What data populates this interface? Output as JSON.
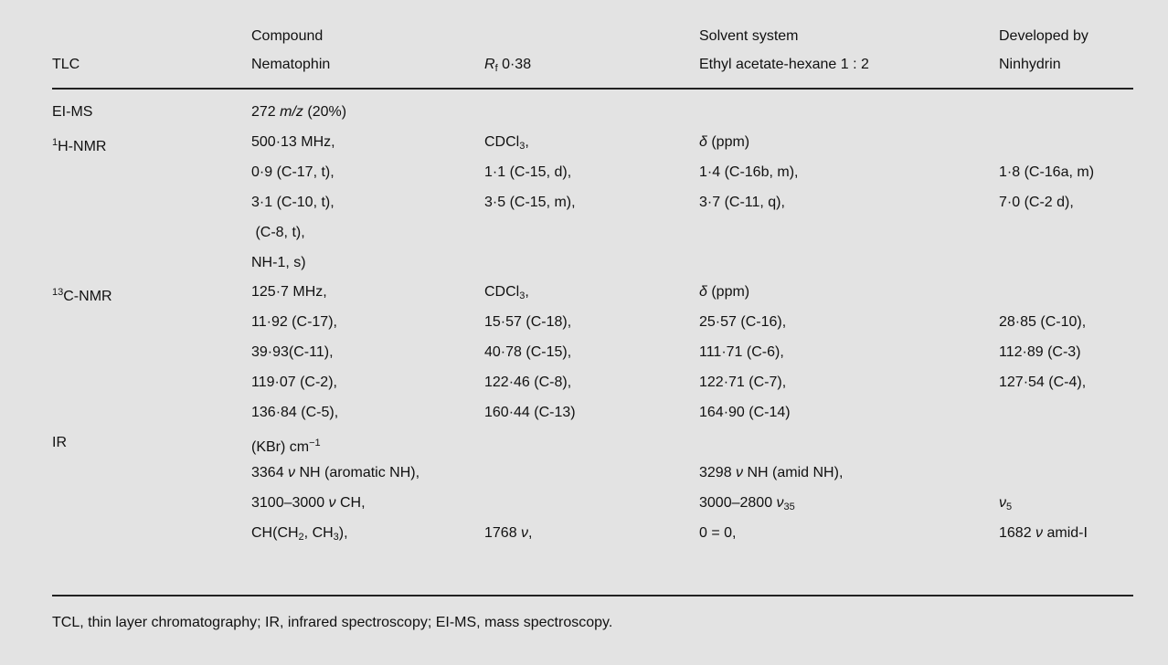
{
  "table": {
    "header": [
      [
        null,
        "Compound",
        null,
        "Solvent system",
        "Developed by"
      ],
      [
        "TLC",
        "Nematophin",
        [
          {
            "text": "R",
            "italic": true
          },
          {
            "text": "f",
            "sub": true
          },
          {
            "text": " 0·38"
          }
        ],
        "Ethyl acetate-hexane 1 : 2",
        "Ninhydrin"
      ]
    ],
    "rows": [
      [
        "EI-MS",
        [
          {
            "text": "272 "
          },
          {
            "text": "m/z",
            "italic": true
          },
          {
            "text": " (20%)"
          }
        ],
        null,
        null,
        null
      ],
      [
        [
          {
            "text": "1",
            "sup": true
          },
          {
            "text": "H-NMR"
          }
        ],
        "500·13 MHz,",
        [
          {
            "text": "CDCl"
          },
          {
            "text": "3",
            "sub": true
          },
          {
            "text": ","
          }
        ],
        [
          {
            "text": "δ",
            "italic": true
          },
          {
            "text": " (ppm)"
          }
        ],
        null
      ],
      [
        null,
        "0·9 (C-17, t),",
        "1·1 (C-15, d),",
        "1·4 (C-16b, m),",
        "1·8 (C-16a, m)"
      ],
      [
        null,
        "3·1 (C-10, t),",
        "3·5 (C-15, m),",
        "3·7 (C-11, q),",
        "7·0 (C-2 d),"
      ],
      [
        null,
        " (C-8, t),",
        null,
        null,
        null
      ],
      [
        null,
        "NH-1, s)",
        null,
        null,
        null
      ],
      [
        [
          {
            "text": "13",
            "sup": true
          },
          {
            "text": "C-NMR"
          }
        ],
        "125·7 MHz,",
        [
          {
            "text": "CDCl"
          },
          {
            "text": "3",
            "sub": true
          },
          {
            "text": ","
          }
        ],
        [
          {
            "text": "δ",
            "italic": true
          },
          {
            "text": " (ppm)"
          }
        ],
        null
      ],
      [
        null,
        "11·92 (C-17),",
        "15·57 (C-18),",
        "25·57 (C-16),",
        "28·85 (C-10),"
      ],
      [
        null,
        "39·93(C-11),",
        "40·78 (C-15),",
        "111·71 (C-6),",
        "112·89 (C-3)"
      ],
      [
        null,
        "119·07 (C-2),",
        "122·46 (C-8),",
        "122·71 (C-7),",
        "127·54 (C-4),"
      ],
      [
        null,
        "136·84 (C-5),",
        "160·44 (C-13)",
        "164·90 (C-14)",
        null
      ],
      [
        "IR",
        [
          {
            "text": "(KBr) cm"
          },
          {
            "text": "−1",
            "sup": true
          }
        ],
        null,
        null,
        null
      ],
      [
        null,
        [
          {
            "text": "3364 "
          },
          {
            "text": "ν",
            "italic": true
          },
          {
            "text": " NH (aromatic NH),"
          }
        ],
        null,
        [
          {
            "text": "3298 "
          },
          {
            "text": "ν",
            "italic": true
          },
          {
            "text": " NH (amid NH),"
          }
        ],
        null
      ],
      [
        null,
        [
          {
            "text": "3100–3000 "
          },
          {
            "text": "ν",
            "italic": true
          },
          {
            "text": " CH,"
          }
        ],
        null,
        [
          {
            "text": "3000–2800 "
          },
          {
            "text": "ν",
            "italic": true
          },
          {
            "text": "35",
            "sub": true
          }
        ],
        [
          {
            "text": "ν",
            "italic": true
          },
          {
            "text": "5",
            "sub": true
          }
        ]
      ],
      [
        null,
        [
          {
            "text": "CH(CH"
          },
          {
            "text": "2",
            "sub": true
          },
          {
            "text": ", CH"
          },
          {
            "text": "3",
            "sub": true
          },
          {
            "text": "),"
          }
        ],
        [
          {
            "text": "1768 "
          },
          {
            "text": "ν",
            "italic": true
          },
          {
            "text": ","
          }
        ],
        "0 = 0,",
        [
          {
            "text": "1682 "
          },
          {
            "text": "ν",
            "italic": true
          },
          {
            "text": " amid-I"
          }
        ]
      ]
    ]
  },
  "footnote": "TCL, thin layer chromatography; IR, infrared spectroscopy; EI-MS, mass spectroscopy."
}
